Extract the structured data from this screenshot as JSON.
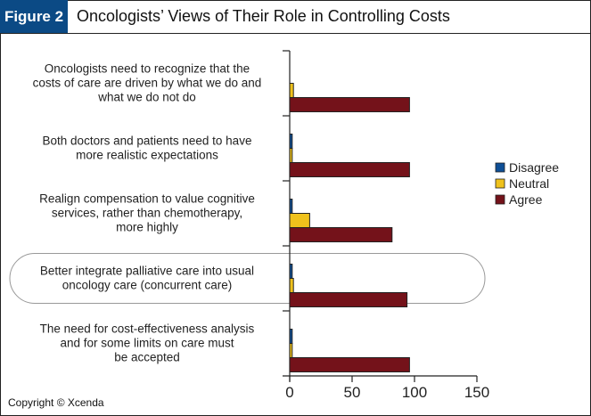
{
  "figure_label": "Figure 2",
  "copyright": "Copyright © Xcenda",
  "chart_data": {
    "type": "bar",
    "orientation": "horizontal",
    "title": "Oncologists’ Views of Their Role in Controlling Costs",
    "xlabel": "",
    "ylabel": "",
    "xlim": [
      0,
      150
    ],
    "xticks": [
      0,
      50,
      100,
      150
    ],
    "grid": false,
    "legend_position": "right",
    "categories": [
      [
        "Oncologists need to recognize that the",
        "costs of care are driven by what we do and",
        "what we do not do"
      ],
      [
        "Both doctors and patients need to have",
        "more realistic expectations"
      ],
      [
        "Realign compensation to value cognitive",
        "services, rather than chemotherapy,",
        "more highly"
      ],
      [
        "Better integrate palliative care into usual",
        "oncology care (concurrent care)"
      ],
      [
        "The need for cost-effectiveness analysis",
        "and for some limits on care must",
        "be accepted"
      ]
    ],
    "highlighted_category_index": 3,
    "series": [
      {
        "name": "Disagree",
        "color": "#0e4f96",
        "values": [
          0,
          2,
          2,
          2,
          2
        ]
      },
      {
        "name": "Neutral",
        "color": "#efc21c",
        "values": [
          3,
          2,
          16,
          3,
          2
        ]
      },
      {
        "name": "Agree",
        "color": "#74121a",
        "values": [
          96,
          96,
          82,
          94,
          96
        ]
      }
    ]
  }
}
